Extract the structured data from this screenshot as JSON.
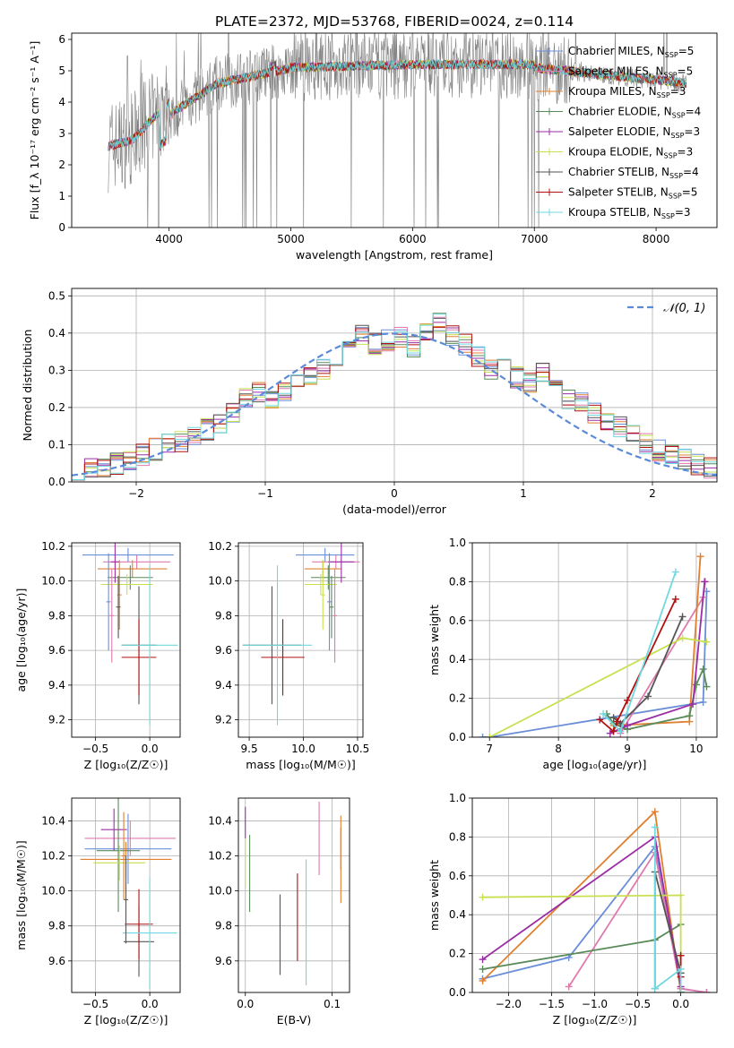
{
  "figure_title": "PLATE=2372, MJD=53768, FIBERID=0024, z=0.114",
  "colors": {
    "chabrier_miles": "#6a8fd8",
    "salpeter_miles": "#e07aae",
    "kroupa_miles": "#e08030",
    "chabrier_elodie": "#5a8a5a",
    "salpeter_elodie": "#9b2ea6",
    "kroupa_elodie": "#c8e050",
    "chabrier_stelib": "#555555",
    "salpeter_stelib": "#b01010",
    "kroupa_stelib": "#70d8e0",
    "data": "#808080",
    "gaussian": "#5b8bd8",
    "grid": "#b0b0b0"
  },
  "chart_data": [
    {
      "id": "spectrum",
      "type": "line",
      "xlabel": "wavelength [Angstrom, rest frame]",
      "ylabel": "Flux [f_λ 10⁻¹⁷ erg cm⁻² s⁻¹ A⁻¹]",
      "xlim": [
        3200,
        8500
      ],
      "ylim": [
        0,
        6.2
      ],
      "xticks": [
        "4000",
        "5000",
        "6000",
        "7000",
        "8000"
      ],
      "yticks": [
        "0",
        "1",
        "2",
        "3",
        "4",
        "5",
        "6"
      ],
      "grid": false,
      "legend_position": "top-right",
      "data_range": [
        3500,
        8250
      ],
      "legend": [
        {
          "label": "Chabrier MILES, N",
          "sub": "SSP",
          "n": "=5",
          "color_key": "chabrier_miles"
        },
        {
          "label": "Salpeter MILES, N",
          "sub": "SSP",
          "n": "=5",
          "color_key": "salpeter_miles"
        },
        {
          "label": "Kroupa MILES, N",
          "sub": "SSP",
          "n": "=3",
          "color_key": "kroupa_miles"
        },
        {
          "label": "Chabrier ELODIE, N",
          "sub": "SSP",
          "n": "=4",
          "color_key": "chabrier_elodie"
        },
        {
          "label": "Salpeter ELODIE, N",
          "sub": "SSP",
          "n": "=3",
          "color_key": "salpeter_elodie"
        },
        {
          "label": "Kroupa ELODIE, N",
          "sub": "SSP",
          "n": "=3",
          "color_key": "kroupa_elodie"
        },
        {
          "label": "Chabrier STELIB, N",
          "sub": "SSP",
          "n": "=4",
          "color_key": "chabrier_stelib"
        },
        {
          "label": "Salpeter STELIB, N",
          "sub": "SSP",
          "n": "=5",
          "color_key": "salpeter_stelib"
        },
        {
          "label": "Kroupa STELIB, N",
          "sub": "SSP",
          "n": "=3",
          "color_key": "kroupa_stelib"
        }
      ]
    },
    {
      "id": "residuals",
      "type": "histogram",
      "xlabel": "(data-model)/error",
      "ylabel": "Normed distribution",
      "xlim": [
        -2.5,
        2.5
      ],
      "ylim": [
        0,
        0.52
      ],
      "xticks": [
        "−2",
        "−1",
        "0",
        "1",
        "2"
      ],
      "yticks": [
        "0.0",
        "0.1",
        "0.2",
        "0.3",
        "0.4",
        "0.5"
      ],
      "grid": true,
      "legend_position": "top-right",
      "legend": "𝒩(0, 1)",
      "bin_width": 0.1,
      "base_values": [
        0.035,
        0.033,
        0.04,
        0.05,
        0.062,
        0.072,
        0.088,
        0.102,
        0.11,
        0.128,
        0.14,
        0.152,
        0.188,
        0.225,
        0.242,
        0.215,
        0.238,
        0.265,
        0.28,
        0.3,
        0.33,
        0.38,
        0.392,
        0.372,
        0.382,
        0.39,
        0.365,
        0.4,
        0.43,
        0.39,
        0.37,
        0.34,
        0.305,
        0.3,
        0.282,
        0.27,
        0.29,
        0.25,
        0.225,
        0.215,
        0.188,
        0.17,
        0.15,
        0.128,
        0.1,
        0.085,
        0.072,
        0.06,
        0.048,
        0.04
      ]
    },
    {
      "id": "age_vs_Z",
      "type": "errorbar",
      "xlabel": "Z [log₁₀(Z/Z☉)]",
      "ylabel": "age  [log₁₀(age/yr)]",
      "xlim": [
        -0.72,
        0.28
      ],
      "ylim": [
        9.1,
        10.22
      ],
      "xticks": [
        "−0.5",
        "0.0"
      ],
      "yticks": [
        "9.2",
        "9.4",
        "9.6",
        "9.8",
        "10.0",
        "10.2"
      ],
      "grid": true,
      "points": [
        {
          "x": -0.2,
          "y": 10.15,
          "xerr": 0.42,
          "yerr": 0.04,
          "color_key": "chabrier_miles"
        },
        {
          "x": -0.12,
          "y": 10.11,
          "xerr": 0.31,
          "yerr": 0.04,
          "color_key": "salpeter_miles"
        },
        {
          "x": -0.16,
          "y": 10.07,
          "xerr": 0.32,
          "yerr": 0.05,
          "color_key": "kroupa_miles"
        },
        {
          "x": -0.18,
          "y": 10.02,
          "xerr": 0.21,
          "yerr": 0.07,
          "color_key": "chabrier_elodie"
        },
        {
          "x": -0.32,
          "y": 10.11,
          "xerr": 0.04,
          "yerr": 0.12,
          "color_key": "salpeter_elodie"
        },
        {
          "x": -0.21,
          "y": 9.98,
          "xerr": 0.24,
          "yerr": 0.06,
          "color_key": "kroupa_elodie"
        },
        {
          "x": -0.1,
          "y": 9.63,
          "xerr": 0.16,
          "yerr": 0.34,
          "color_key": "chabrier_stelib"
        },
        {
          "x": -0.1,
          "y": 9.56,
          "xerr": 0.16,
          "yerr": 0.22,
          "color_key": "salpeter_stelib"
        },
        {
          "x": 0.0,
          "y": 9.63,
          "xerr": 0.26,
          "yerr": 0.46,
          "color_key": "kroupa_stelib"
        },
        {
          "x": -0.38,
          "y": 9.88,
          "xerr": 0.02,
          "yerr": 0.28,
          "color_key": "chabrier_miles"
        },
        {
          "x": -0.35,
          "y": 9.8,
          "xerr": 0.02,
          "yerr": 0.27,
          "color_key": "salpeter_miles"
        },
        {
          "x": -0.28,
          "y": 9.92,
          "xerr": 0.02,
          "yerr": 0.2,
          "color_key": "kroupa_miles"
        },
        {
          "x": -0.29,
          "y": 9.85,
          "xerr": 0.02,
          "yerr": 0.18,
          "color_key": "chabrier_stelib"
        }
      ]
    },
    {
      "id": "age_vs_mass",
      "type": "errorbar",
      "xlabel": "mass [log₁₀(M/M☉)]",
      "ylabel": "",
      "xlim": [
        9.4,
        10.55
      ],
      "ylim": [
        9.1,
        10.22
      ],
      "xticks": [
        "9.5",
        "10.0",
        "10.5"
      ],
      "yticks": [
        "9.2",
        "9.4",
        "9.6",
        "9.8",
        "10.0",
        "10.2"
      ],
      "grid": true,
      "points": [
        {
          "x": 10.2,
          "y": 10.15,
          "xerr": 0.27,
          "yerr": 0.04,
          "color_key": "chabrier_miles"
        },
        {
          "x": 10.3,
          "y": 10.11,
          "xerr": 0.22,
          "yerr": 0.04,
          "color_key": "salpeter_miles"
        },
        {
          "x": 10.18,
          "y": 10.07,
          "xerr": 0.17,
          "yerr": 0.05,
          "color_key": "kroupa_miles"
        },
        {
          "x": 10.23,
          "y": 10.02,
          "xerr": 0.16,
          "yerr": 0.07,
          "color_key": "chabrier_elodie"
        },
        {
          "x": 10.35,
          "y": 10.11,
          "xerr": 0.12,
          "yerr": 0.12,
          "color_key": "salpeter_elodie"
        },
        {
          "x": 10.16,
          "y": 9.98,
          "xerr": 0.15,
          "yerr": 0.06,
          "color_key": "kroupa_elodie"
        },
        {
          "x": 9.71,
          "y": 9.63,
          "xerr": 0.27,
          "yerr": 0.34,
          "color_key": "chabrier_stelib"
        },
        {
          "x": 9.81,
          "y": 9.56,
          "xerr": 0.2,
          "yerr": 0.22,
          "color_key": "salpeter_stelib"
        },
        {
          "x": 9.76,
          "y": 9.63,
          "xerr": 0.32,
          "yerr": 0.46,
          "color_key": "kroupa_stelib"
        },
        {
          "x": 10.24,
          "y": 9.88,
          "xerr": 0.02,
          "yerr": 0.28,
          "color_key": "chabrier_miles"
        },
        {
          "x": 10.29,
          "y": 9.8,
          "xerr": 0.02,
          "yerr": 0.27,
          "color_key": "salpeter_miles"
        },
        {
          "x": 10.18,
          "y": 9.92,
          "xerr": 0.02,
          "yerr": 0.2,
          "color_key": "kroupa_elodie"
        },
        {
          "x": 10.26,
          "y": 9.85,
          "xerr": 0.02,
          "yerr": 0.18,
          "color_key": "chabrier_elodie"
        }
      ]
    },
    {
      "id": "weight_vs_age",
      "type": "line",
      "xlabel": "age  [log₁₀(age/yr)]",
      "ylabel": "mass weight",
      "xlim": [
        6.75,
        10.3
      ],
      "ylim": [
        0,
        1.0
      ],
      "xticks": [
        "7",
        "8",
        "9",
        "10"
      ],
      "yticks": [
        "0.0",
        "0.2",
        "0.4",
        "0.6",
        "0.8",
        "1.0"
      ],
      "grid": true,
      "series": [
        {
          "color_key": "chabrier_miles",
          "x": [
            6.9,
            7.0,
            10.1,
            10.15
          ],
          "y": [
            0.0,
            0.0,
            0.18,
            0.75
          ]
        },
        {
          "color_key": "salpeter_miles",
          "x": [
            8.9,
            10.1,
            10.13
          ],
          "y": [
            0.02,
            0.72,
            0.8
          ]
        },
        {
          "color_key": "kroupa_miles",
          "x": [
            8.8,
            9.9,
            10.06
          ],
          "y": [
            0.06,
            0.08,
            0.93
          ]
        },
        {
          "color_key": "chabrier_elodie",
          "x": [
            8.7,
            8.8,
            9.0,
            9.9,
            10.0,
            10.1,
            10.15
          ],
          "y": [
            0.12,
            0.07,
            0.04,
            0.11,
            0.27,
            0.35,
            0.26
          ]
        },
        {
          "color_key": "salpeter_elodie",
          "x": [
            8.75,
            9.0,
            9.95,
            10.12
          ],
          "y": [
            0.02,
            0.06,
            0.17,
            0.8
          ]
        },
        {
          "color_key": "kroupa_elodie",
          "x": [
            7.0,
            9.8,
            10.15
          ],
          "y": [
            0.0,
            0.51,
            0.49
          ]
        },
        {
          "color_key": "chabrier_stelib",
          "x": [
            8.8,
            8.9,
            9.3,
            9.8
          ],
          "y": [
            0.1,
            0.07,
            0.21,
            0.62
          ]
        },
        {
          "color_key": "salpeter_stelib",
          "x": [
            8.6,
            8.8,
            8.85,
            9.0,
            9.7
          ],
          "y": [
            0.09,
            0.03,
            0.08,
            0.19,
            0.71
          ]
        },
        {
          "color_key": "kroupa_stelib",
          "x": [
            8.65,
            8.9,
            9.7
          ],
          "y": [
            0.12,
            0.03,
            0.85
          ]
        }
      ]
    },
    {
      "id": "mass_vs_Z",
      "type": "errorbar",
      "xlabel": "Z [log₁₀(Z/Z☉)]",
      "ylabel": "mass [log₁₀(M/M☉)]",
      "xlim": [
        -0.72,
        0.28
      ],
      "ylim": [
        9.42,
        10.53
      ],
      "xticks": [
        "−0.5",
        "0.0"
      ],
      "yticks": [
        "9.6",
        "9.8",
        "10.0",
        "10.2",
        "10.4"
      ],
      "grid": true,
      "points": [
        {
          "x": -0.2,
          "y": 10.24,
          "xerr": 0.4,
          "yerr": 0.2,
          "color_key": "chabrier_miles"
        },
        {
          "x": -0.18,
          "y": 10.3,
          "xerr": 0.42,
          "yerr": 0.1,
          "color_key": "salpeter_miles"
        },
        {
          "x": -0.22,
          "y": 10.18,
          "xerr": 0.42,
          "yerr": 0.1,
          "color_key": "kroupa_miles"
        },
        {
          "x": -0.29,
          "y": 10.23,
          "xerr": 0.2,
          "yerr": 0.35,
          "color_key": "chabrier_elodie"
        },
        {
          "x": -0.33,
          "y": 10.35,
          "xerr": 0.12,
          "yerr": 0.12,
          "color_key": "salpeter_elodie"
        },
        {
          "x": -0.28,
          "y": 10.16,
          "xerr": 0.24,
          "yerr": 0.1,
          "color_key": "kroupa_elodie"
        },
        {
          "x": -0.1,
          "y": 9.71,
          "xerr": 0.14,
          "yerr": 0.2,
          "color_key": "chabrier_stelib"
        },
        {
          "x": -0.1,
          "y": 9.81,
          "xerr": 0.13,
          "yerr": 0.2,
          "color_key": "salpeter_stelib"
        },
        {
          "x": 0.0,
          "y": 9.76,
          "xerr": 0.25,
          "yerr": 0.32,
          "color_key": "kroupa_stelib"
        },
        {
          "x": -0.24,
          "y": 10.2,
          "xerr": 0.02,
          "yerr": 0.25,
          "color_key": "kroupa_miles"
        },
        {
          "x": -0.22,
          "y": 9.95,
          "xerr": 0.02,
          "yerr": 0.25,
          "color_key": "chabrier_stelib"
        }
      ]
    },
    {
      "id": "mass_vs_ebv",
      "type": "errorbar",
      "xlabel": "E(B-V)",
      "ylabel": "",
      "xlim": [
        -0.008,
        0.12
      ],
      "ylim": [
        9.42,
        10.53
      ],
      "xticks": [
        "0.0",
        "0.1"
      ],
      "yticks": [
        "9.6",
        "9.8",
        "10.0",
        "10.2",
        "10.4"
      ],
      "grid": true,
      "points": [
        {
          "x": 0.11,
          "y": 10.24,
          "xerr": 0,
          "yerr": 0.12,
          "color_key": "chabrier_miles"
        },
        {
          "x": 0.085,
          "y": 10.3,
          "xerr": 0,
          "yerr": 0.21,
          "color_key": "salpeter_miles"
        },
        {
          "x": 0.11,
          "y": 10.18,
          "xerr": 0,
          "yerr": 0.25,
          "color_key": "kroupa_miles"
        },
        {
          "x": 0.005,
          "y": 10.1,
          "xerr": 0,
          "yerr": 0.22,
          "color_key": "chabrier_elodie"
        },
        {
          "x": 0.0,
          "y": 10.39,
          "xerr": 0,
          "yerr": 0.09,
          "color_key": "salpeter_elodie"
        },
        {
          "x": 0.0,
          "y": 10.16,
          "xerr": 0,
          "yerr": 0.14,
          "color_key": "kroupa_elodie"
        },
        {
          "x": 0.04,
          "y": 9.75,
          "xerr": 0,
          "yerr": 0.23,
          "color_key": "chabrier_stelib"
        },
        {
          "x": 0.06,
          "y": 9.85,
          "xerr": 0,
          "yerr": 0.25,
          "color_key": "salpeter_stelib"
        },
        {
          "x": 0.07,
          "y": 9.82,
          "xerr": 0,
          "yerr": 0.36,
          "color_key": "kroupa_stelib"
        }
      ]
    },
    {
      "id": "weight_vs_Z",
      "type": "line",
      "xlabel": "Z [log₁₀(Z/Z☉)]",
      "ylabel": "mass weight",
      "xlim": [
        -2.42,
        0.42
      ],
      "ylim": [
        0,
        1.0
      ],
      "xticks": [
        "−2.0",
        "−1.5",
        "−1.0",
        "−0.5",
        "0.0"
      ],
      "yticks": [
        "0.0",
        "0.2",
        "0.4",
        "0.6",
        "0.8",
        "1.0"
      ],
      "grid": true,
      "series": [
        {
          "color_key": "chabrier_miles",
          "x": [
            -2.3,
            -1.3,
            -0.3,
            0.0,
            0.3
          ],
          "y": [
            0.07,
            0.18,
            0.75,
            0.02,
            0.0
          ]
        },
        {
          "color_key": "salpeter_miles",
          "x": [
            -1.3,
            -0.3,
            0.0,
            0.3
          ],
          "y": [
            0.03,
            0.72,
            0.02,
            0.0
          ]
        },
        {
          "color_key": "kroupa_miles",
          "x": [
            -2.3,
            -0.3,
            0.0
          ],
          "y": [
            0.06,
            0.93,
            0.0
          ]
        },
        {
          "color_key": "chabrier_elodie",
          "x": [
            -2.3,
            -0.3,
            0.0
          ],
          "y": [
            0.12,
            0.27,
            0.35
          ]
        },
        {
          "color_key": "salpeter_elodie",
          "x": [
            -2.3,
            -0.3,
            0.0
          ],
          "y": [
            0.17,
            0.8,
            0.03
          ]
        },
        {
          "color_key": "kroupa_elodie",
          "x": [
            -2.3,
            0.0,
            0.0
          ],
          "y": [
            0.49,
            0.5,
            0.0
          ]
        },
        {
          "color_key": "chabrier_stelib",
          "x": [
            -0.3,
            -0.3,
            0.0,
            0.0
          ],
          "y": [
            0.02,
            0.62,
            0.1,
            0.0
          ]
        },
        {
          "color_key": "salpeter_stelib",
          "x": [
            0.0,
            0.0,
            0.0
          ],
          "y": [
            0.0,
            0.19,
            0.08
          ]
        },
        {
          "color_key": "kroupa_stelib",
          "x": [
            -0.3,
            -0.3,
            0.0,
            0.0
          ],
          "y": [
            0.85,
            0.02,
            0.12,
            0.0
          ]
        }
      ]
    }
  ]
}
